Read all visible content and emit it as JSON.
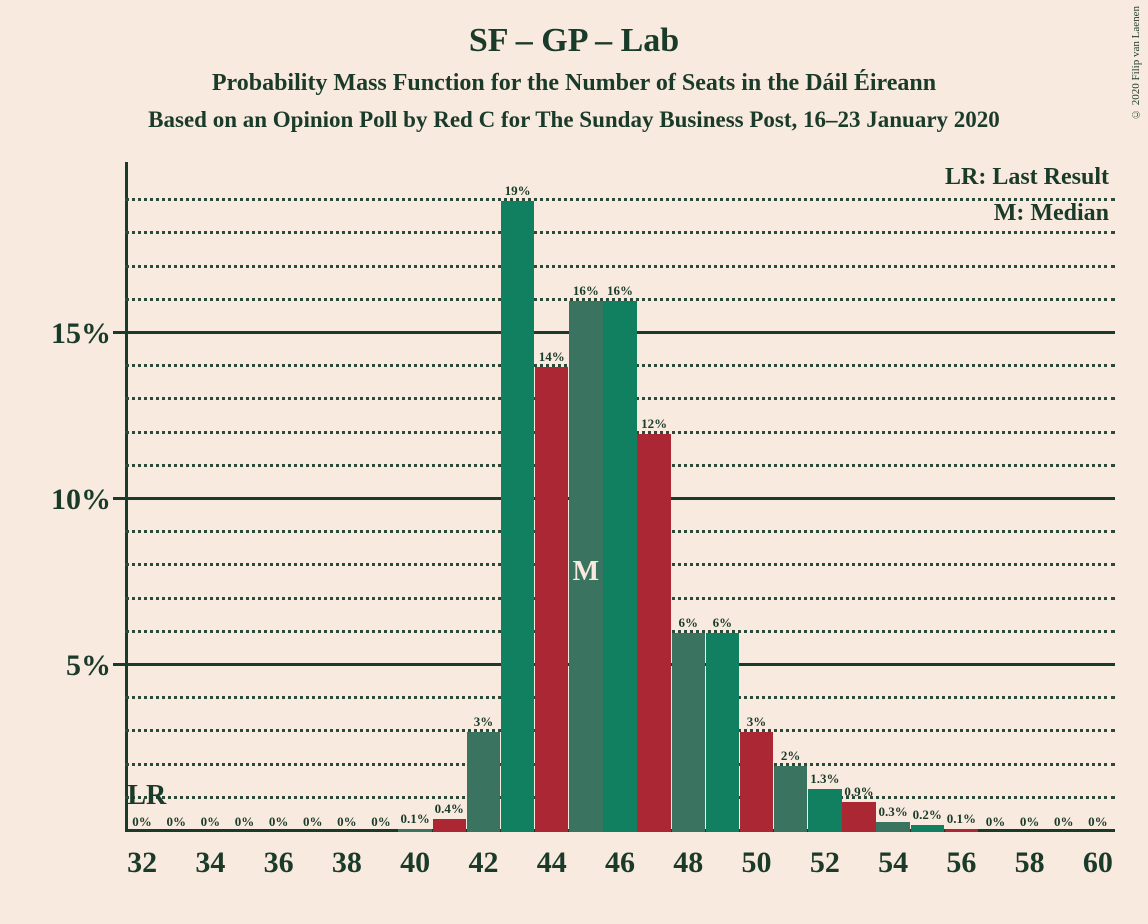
{
  "background_color": "#f8eade",
  "text_color": "#1a3a2a",
  "grid_color": "#2b4a3a",
  "axis_color": "#1a3a2a",
  "copyright": "© 2020 Filip van Laenen",
  "title": "SF – GP – Lab",
  "subtitle": "Probability Mass Function for the Number of Seats in the Dáil Éireann",
  "subsubtitle": "Based on an Opinion Poll by Red C for The Sunday Business Post, 16–23 January 2020",
  "legend": {
    "lr": "LR: Last Result",
    "m": "M: Median"
  },
  "lr_marker": "LR",
  "median_marker": "M",
  "median_x": 45,
  "lr_x": 32,
  "chart": {
    "ymax_pct": 20,
    "major_y_ticks": [
      5,
      10,
      15
    ],
    "major_y_labels": [
      "5%",
      "10%",
      "15%"
    ],
    "minor_y_step": 1,
    "xmin": 31.5,
    "xmax": 60.5,
    "x_tick_start": 32,
    "x_tick_step": 2,
    "bar_colors": {
      "even": "#3a7461",
      "odd_special": "#118061",
      "odd_red": "#ab2734"
    },
    "series": [
      {
        "x": 32,
        "pct": 0,
        "label": "0%",
        "color_key": "even"
      },
      {
        "x": 33,
        "pct": 0,
        "label": "0%",
        "color_key": "odd_red"
      },
      {
        "x": 34,
        "pct": 0,
        "label": "0%",
        "color_key": "even"
      },
      {
        "x": 35,
        "pct": 0,
        "label": "0%",
        "color_key": "odd_red"
      },
      {
        "x": 36,
        "pct": 0,
        "label": "0%",
        "color_key": "even"
      },
      {
        "x": 37,
        "pct": 0,
        "label": "0%",
        "color_key": "odd_red"
      },
      {
        "x": 38,
        "pct": 0,
        "label": "0%",
        "color_key": "even"
      },
      {
        "x": 39,
        "pct": 0,
        "label": "0%",
        "color_key": "odd_red"
      },
      {
        "x": 40,
        "pct": 0.1,
        "label": "0.1%",
        "color_key": "even"
      },
      {
        "x": 41,
        "pct": 0.4,
        "label": "0.4%",
        "color_key": "odd_red"
      },
      {
        "x": 42,
        "pct": 3,
        "label": "3%",
        "color_key": "even"
      },
      {
        "x": 43,
        "pct": 19,
        "label": "19%",
        "color_key": "odd_special"
      },
      {
        "x": 44,
        "pct": 14,
        "label": "14%",
        "color_key": "odd_red"
      },
      {
        "x": 45,
        "pct": 16,
        "label": "16%",
        "color_key": "even"
      },
      {
        "x": 46,
        "pct": 16,
        "label": "16%",
        "color_key": "odd_special"
      },
      {
        "x": 47,
        "pct": 12,
        "label": "12%",
        "color_key": "odd_red"
      },
      {
        "x": 48,
        "pct": 6,
        "label": "6%",
        "color_key": "even"
      },
      {
        "x": 49,
        "pct": 6,
        "label": "6%",
        "color_key": "odd_special"
      },
      {
        "x": 50,
        "pct": 3,
        "label": "3%",
        "color_key": "odd_red"
      },
      {
        "x": 51,
        "pct": 2,
        "label": "2%",
        "color_key": "even"
      },
      {
        "x": 52,
        "pct": 1.3,
        "label": "1.3%",
        "color_key": "odd_special"
      },
      {
        "x": 53,
        "pct": 0.9,
        "label": "0.9%",
        "color_key": "odd_red"
      },
      {
        "x": 54,
        "pct": 0.3,
        "label": "0.3%",
        "color_key": "even"
      },
      {
        "x": 55,
        "pct": 0.2,
        "label": "0.2%",
        "color_key": "odd_special"
      },
      {
        "x": 56,
        "pct": 0.1,
        "label": "0.1%",
        "color_key": "odd_red"
      },
      {
        "x": 57,
        "pct": 0,
        "label": "0%",
        "color_key": "even"
      },
      {
        "x": 58,
        "pct": 0,
        "label": "0%",
        "color_key": "odd_red"
      },
      {
        "x": 59,
        "pct": 0,
        "label": "0%",
        "color_key": "even"
      },
      {
        "x": 60,
        "pct": 0,
        "label": "0%",
        "color_key": "odd_red"
      }
    ]
  }
}
